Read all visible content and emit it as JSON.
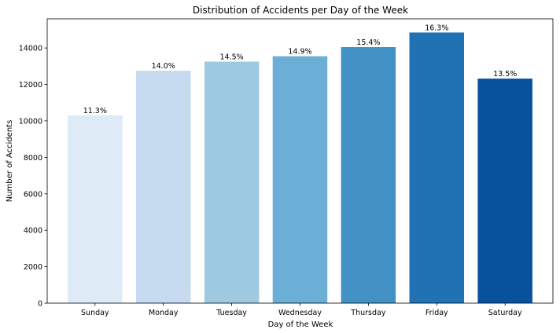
{
  "chart_data": {
    "type": "bar",
    "title": "Distribution of Accidents per Day of the Week",
    "xlabel": "Day of the Week",
    "ylabel": "Number of Accidents",
    "categories": [
      "Sunday",
      "Monday",
      "Tuesday",
      "Wednesday",
      "Thursday",
      "Friday",
      "Saturday"
    ],
    "values": [
      10300,
      12750,
      13250,
      13550,
      14050,
      14850,
      12320
    ],
    "data_labels": [
      "11.3%",
      "14.0%",
      "14.5%",
      "14.9%",
      "15.4%",
      "16.3%",
      "13.5%"
    ],
    "colors": [
      "#deebf7",
      "#c6dbef",
      "#9ecae1",
      "#6baed6",
      "#4292c6",
      "#2171b5",
      "#08519c"
    ],
    "ylim": [
      0,
      15600
    ],
    "yticks": [
      0,
      2000,
      4000,
      6000,
      8000,
      10000,
      12000,
      14000
    ],
    "grid": false,
    "legend": "none"
  }
}
